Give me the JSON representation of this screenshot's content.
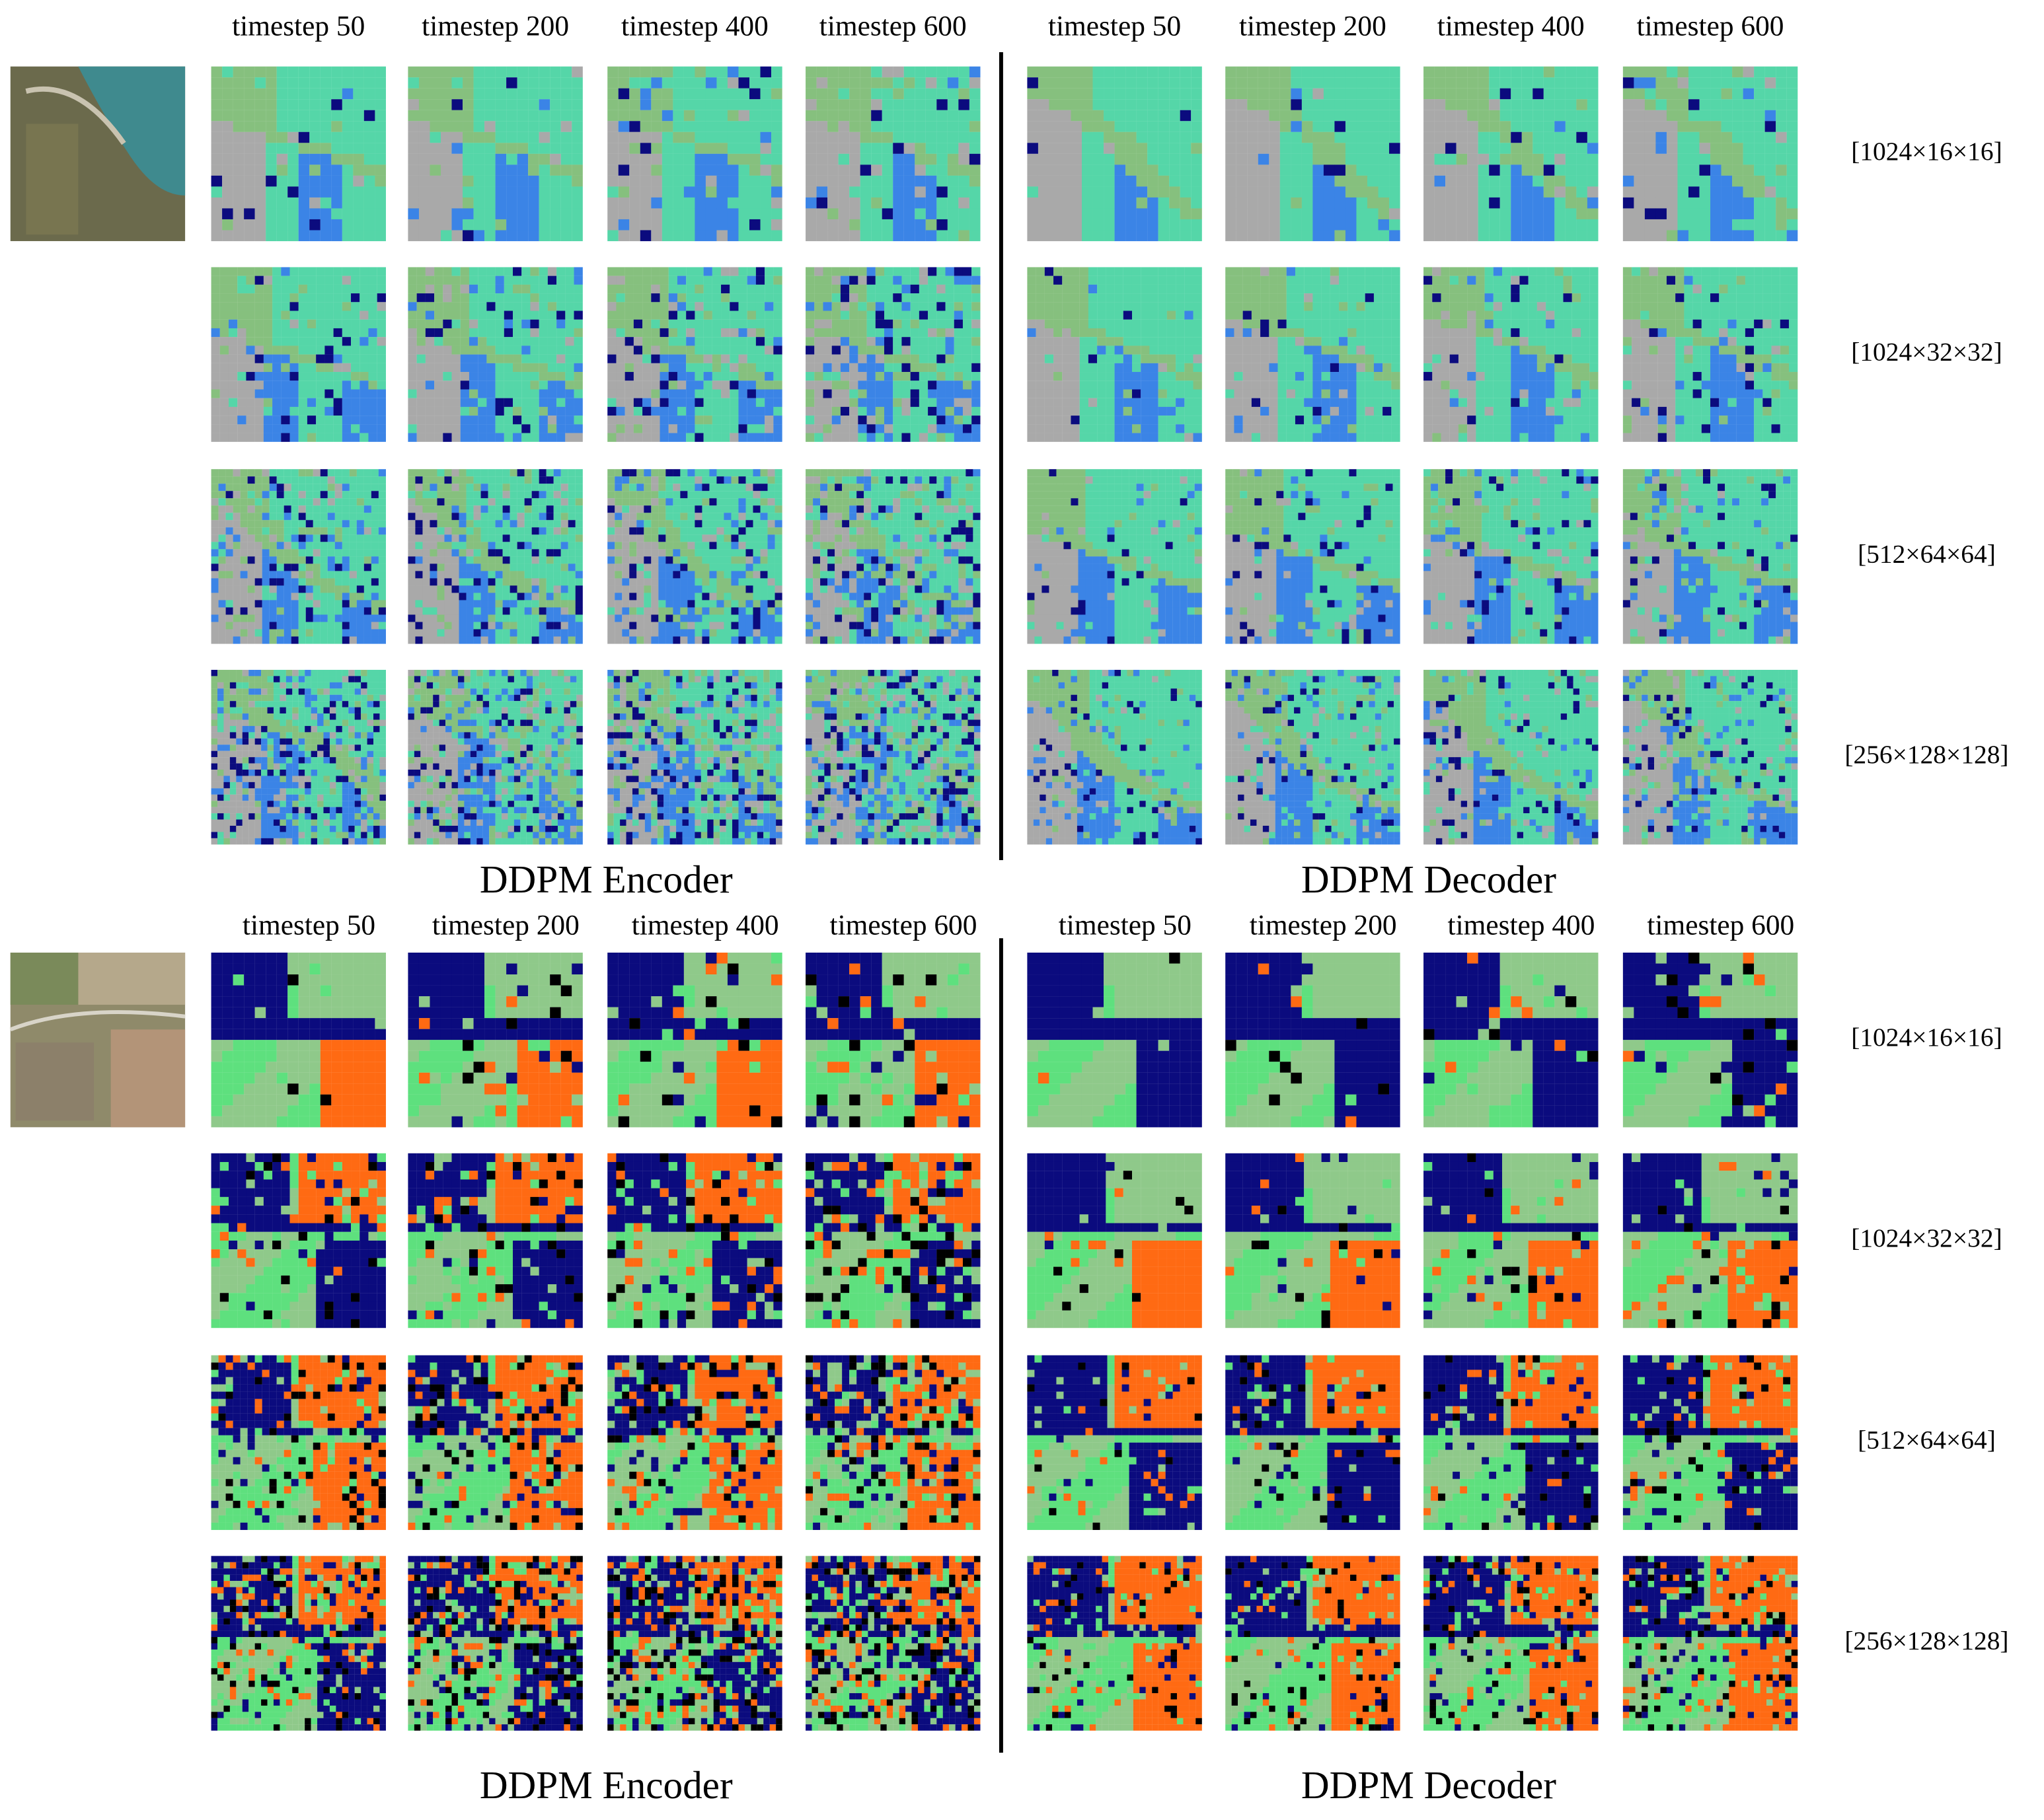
{
  "panels": [
    {
      "encoder_timesteps": [
        "timestep 50",
        "timestep 200",
        "timestep 400",
        "timestep 600"
      ],
      "decoder_timesteps": [
        "timestep 50",
        "timestep 200",
        "timestep 400",
        "timestep 600"
      ],
      "resolutions": [
        "[1024×16×16]",
        "[1024×32×32]",
        "[512×64×64]",
        "[256×128×128]"
      ],
      "encoder_caption": "DDPM Encoder",
      "decoder_caption": "DDPM Decoder"
    },
    {
      "encoder_timesteps": [
        "timestep 50",
        "timestep 200",
        "timestep 400",
        "timestep 600"
      ],
      "decoder_timesteps": [
        "timestep 50",
        "timestep 200",
        "timestep 400",
        "timestep 600"
      ],
      "resolutions": [
        "[1024×16×16]",
        "[1024×32×32]",
        "[512×64×64]",
        "[256×128×128]"
      ],
      "encoder_caption": "DDPM Encoder",
      "decoder_caption": "DDPM Decoder"
    }
  ]
}
